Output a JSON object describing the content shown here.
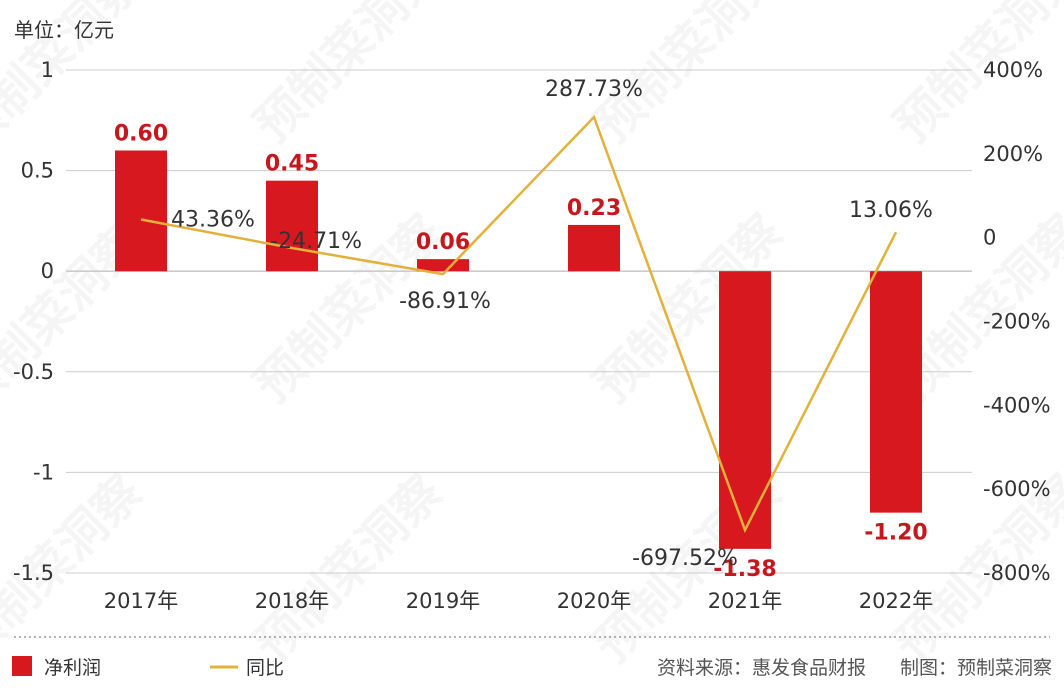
{
  "unit_label": "单位：亿元",
  "legend": {
    "bar": "净利润",
    "line": "同比"
  },
  "source": "资料来源：惠发食品财报",
  "credit": "制图：预制菜洞察",
  "watermark": "预制菜洞察",
  "colors": {
    "bar": "#d7191f",
    "bar_label": "#c8161d",
    "line": "#e3b13a",
    "text": "#333333",
    "grid": "#cccccc"
  },
  "chart_data": {
    "type": "bar",
    "combo": "bar + line on secondary axis",
    "categories": [
      "2017年",
      "2018年",
      "2019年",
      "2020年",
      "2021年",
      "2022年"
    ],
    "series": [
      {
        "name": "净利润",
        "type": "bar",
        "axis": "left",
        "values": [
          0.6,
          0.45,
          0.06,
          0.23,
          -1.38,
          -1.2
        ],
        "labels": [
          "0.60",
          "0.45",
          "0.06",
          "0.23",
          "-1.38",
          "-1.20"
        ]
      },
      {
        "name": "同比",
        "type": "line",
        "axis": "right",
        "values": [
          43.36,
          -24.71,
          -86.91,
          287.73,
          -697.52,
          13.06
        ],
        "labels": [
          "43.36%",
          "-24.71%",
          "-86.91%",
          "287.73%",
          "-697.52%",
          "13.06%"
        ]
      }
    ],
    "left_axis": {
      "min": -1.5,
      "max": 1,
      "ticks": [
        1,
        0.5,
        0,
        -0.5,
        -1,
        -1.5
      ],
      "tick_labels": [
        "1",
        "0.5",
        "0",
        "-0.5",
        "-1",
        "-1.5"
      ]
    },
    "right_axis": {
      "min": -800,
      "max": 400,
      "ticks": [
        400,
        200,
        0,
        -200,
        -400,
        -600,
        -800
      ],
      "tick_labels": [
        "400%",
        "200%",
        "0",
        "-200%",
        "-400%",
        "-600%",
        "-800%"
      ]
    },
    "grid": true,
    "legend_position": "bottom-left"
  }
}
